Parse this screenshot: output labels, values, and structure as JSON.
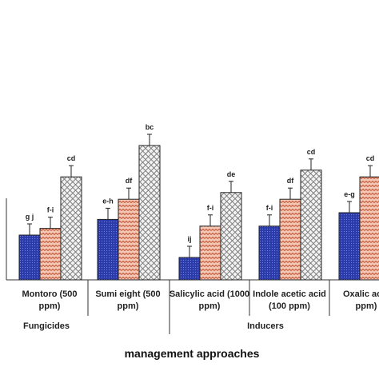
{
  "chart_data": {
    "type": "bar",
    "title": "",
    "xlabel": "management approaches",
    "ylabel": "",
    "categories": [
      [
        "Montoro (500",
        "ppm)"
      ],
      [
        "Sumi eight (500",
        "ppm)"
      ],
      [
        "Salicylic acid (1000",
        "ppm)"
      ],
      [
        "Indole acetic acid",
        "(100 ppm)"
      ],
      [
        "Oxalic acid",
        "ppm)"
      ]
    ],
    "groups": [
      {
        "label": "Fungicides",
        "categories": [
          0,
          1
        ]
      },
      {
        "label": "Inducers",
        "categories": [
          2,
          3,
          4
        ]
      }
    ],
    "ylim": [
      0,
      100
    ],
    "grid": false,
    "legend": "none",
    "series": [
      {
        "color": "#2a3aa8",
        "pattern": "dots",
        "values": [
          20,
          27,
          10,
          24,
          30
        ],
        "errors": [
          5,
          5,
          5,
          5,
          5
        ],
        "letters": [
          "g j",
          "e-h",
          "ij",
          "f-i",
          "e-g"
        ]
      },
      {
        "color": "#e8a48a",
        "pattern": "zigzag",
        "values": [
          23,
          36,
          24,
          36,
          46
        ],
        "errors": [
          5,
          5,
          5,
          5,
          5
        ],
        "letters": [
          "f-i",
          "df",
          "f-i",
          "df",
          "cd"
        ]
      },
      {
        "color": "#d9d9d9",
        "pattern": "crosshatch",
        "values": [
          46,
          60,
          39,
          49,
          null
        ],
        "errors": [
          5,
          5,
          5,
          5,
          null
        ],
        "letters": [
          "cd",
          "bc",
          "de",
          "cd",
          ""
        ]
      }
    ]
  }
}
